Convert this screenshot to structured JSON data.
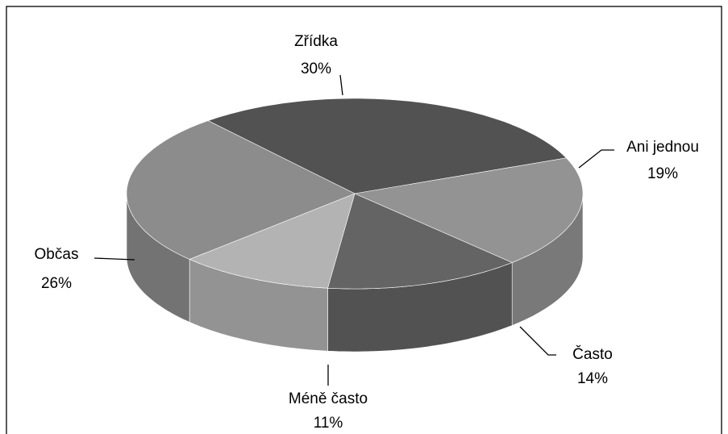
{
  "chart_data": {
    "type": "pie",
    "categories": [
      "Zřídka",
      "Ani jednou",
      "Často",
      "Méně často",
      "Občas"
    ],
    "values": [
      30,
      19,
      14,
      11,
      26
    ],
    "value_labels": [
      "30%",
      "19%",
      "14%",
      "11%",
      "26%"
    ],
    "colors": [
      "#525252",
      "#939393",
      "#646464",
      "#b3b3b3",
      "#8c8c8c"
    ]
  }
}
